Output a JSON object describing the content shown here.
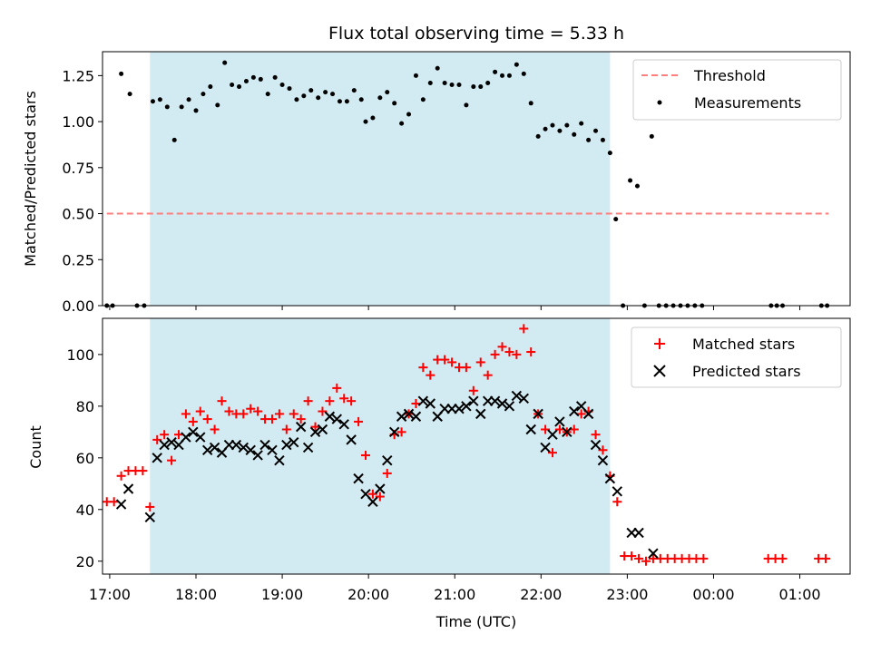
{
  "chart_data": [
    {
      "type": "scatter",
      "title": "Flux total observing time = 5.33 h",
      "xlabel": "",
      "ylabel": "Matched/Predicted stars",
      "xlim": [
        "16:55",
        "01:35"
      ],
      "ylim": [
        0,
        1.38
      ],
      "y_ticks": [
        "0.00",
        "0.25",
        "0.50",
        "0.75",
        "1.00",
        "1.25"
      ],
      "shaded_interval": {
        "start": "17:28",
        "end": "22:48",
        "color": "#add8e6"
      },
      "threshold": {
        "name": "Threshold",
        "value": 0.5,
        "x_start": "16:58",
        "x_end": "01:20",
        "color": "#ff7f7f"
      },
      "legend": {
        "position": "top-right",
        "entries": [
          "Threshold",
          "Measurements"
        ]
      },
      "series": [
        {
          "name": "Measurements",
          "color": "#000000",
          "marker": "dot",
          "points": [
            [
              "16:58",
              0
            ],
            [
              "17:02",
              0
            ],
            [
              "17:08",
              1.26
            ],
            [
              "17:14",
              1.15
            ],
            [
              "17:19",
              0
            ],
            [
              "17:24",
              0
            ],
            [
              "17:30",
              1.11
            ],
            [
              "17:35",
              1.12
            ],
            [
              "17:40",
              1.08
            ],
            [
              "17:45",
              0.9
            ],
            [
              "17:50",
              1.08
            ],
            [
              "17:55",
              1.12
            ],
            [
              "18:00",
              1.06
            ],
            [
              "18:05",
              1.15
            ],
            [
              "18:10",
              1.19
            ],
            [
              "18:15",
              1.09
            ],
            [
              "18:20",
              1.32
            ],
            [
              "18:25",
              1.2
            ],
            [
              "18:30",
              1.19
            ],
            [
              "18:35",
              1.22
            ],
            [
              "18:40",
              1.24
            ],
            [
              "18:45",
              1.23
            ],
            [
              "18:50",
              1.15
            ],
            [
              "18:55",
              1.24
            ],
            [
              "19:00",
              1.2
            ],
            [
              "19:05",
              1.18
            ],
            [
              "19:10",
              1.12
            ],
            [
              "19:15",
              1.14
            ],
            [
              "19:20",
              1.17
            ],
            [
              "19:25",
              1.13
            ],
            [
              "19:30",
              1.16
            ],
            [
              "19:35",
              1.15
            ],
            [
              "19:40",
              1.11
            ],
            [
              "19:45",
              1.11
            ],
            [
              "19:50",
              1.17
            ],
            [
              "19:55",
              1.12
            ],
            [
              "19:58",
              1.0
            ],
            [
              "20:03",
              1.02
            ],
            [
              "20:08",
              1.13
            ],
            [
              "20:13",
              1.16
            ],
            [
              "20:18",
              1.1
            ],
            [
              "20:23",
              0.99
            ],
            [
              "20:28",
              1.04
            ],
            [
              "20:33",
              1.25
            ],
            [
              "20:38",
              1.12
            ],
            [
              "20:43",
              1.21
            ],
            [
              "20:48",
              1.29
            ],
            [
              "20:53",
              1.21
            ],
            [
              "20:58",
              1.2
            ],
            [
              "21:03",
              1.2
            ],
            [
              "21:08",
              1.09
            ],
            [
              "21:13",
              1.19
            ],
            [
              "21:18",
              1.19
            ],
            [
              "21:23",
              1.21
            ],
            [
              "21:28",
              1.27
            ],
            [
              "21:33",
              1.25
            ],
            [
              "21:38",
              1.25
            ],
            [
              "21:43",
              1.31
            ],
            [
              "21:48",
              1.26
            ],
            [
              "21:53",
              1.1
            ],
            [
              "21:58",
              0.92
            ],
            [
              "22:03",
              0.96
            ],
            [
              "22:08",
              0.98
            ],
            [
              "22:13",
              0.95
            ],
            [
              "22:18",
              0.98
            ],
            [
              "22:23",
              0.93
            ],
            [
              "22:28",
              0.99
            ],
            [
              "22:33",
              0.9
            ],
            [
              "22:38",
              0.95
            ],
            [
              "22:43",
              0.9
            ],
            [
              "22:48",
              0.83
            ],
            [
              "22:52",
              0.47
            ],
            [
              "22:57",
              0
            ],
            [
              "23:02",
              0.68
            ],
            [
              "23:07",
              0.65
            ],
            [
              "23:12",
              0
            ],
            [
              "23:17",
              0.92
            ],
            [
              "23:22",
              0
            ],
            [
              "23:27",
              0
            ],
            [
              "23:32",
              0
            ],
            [
              "23:37",
              0
            ],
            [
              "23:42",
              0
            ],
            [
              "23:47",
              0
            ],
            [
              "23:52",
              0
            ],
            [
              "00:40",
              0
            ],
            [
              "00:44",
              0
            ],
            [
              "00:48",
              0
            ],
            [
              "01:15",
              0
            ],
            [
              "01:19",
              0
            ]
          ]
        }
      ]
    },
    {
      "type": "scatter",
      "title": "",
      "xlabel": "Time (UTC)",
      "ylabel": "Count",
      "xlim": [
        "16:55",
        "01:35"
      ],
      "ylim": [
        15,
        114
      ],
      "y_ticks": [
        "20",
        "40",
        "60",
        "80",
        "100"
      ],
      "x_ticks": [
        "17:00",
        "18:00",
        "19:00",
        "20:00",
        "21:00",
        "22:00",
        "23:00",
        "00:00",
        "01:00"
      ],
      "shaded_interval": {
        "start": "17:28",
        "end": "22:48",
        "color": "#add8e6"
      },
      "legend": {
        "position": "top-right",
        "entries": [
          "Matched stars",
          "Predicted stars"
        ]
      },
      "series": [
        {
          "name": "Matched stars",
          "color": "#ff0000",
          "marker": "plus",
          "points": [
            [
              "16:58",
              43
            ],
            [
              "17:03",
              43
            ],
            [
              "17:08",
              53
            ],
            [
              "17:13",
              55
            ],
            [
              "17:18",
              55
            ],
            [
              "17:23",
              55
            ],
            [
              "17:28",
              41
            ],
            [
              "17:33",
              67
            ],
            [
              "17:38",
              69
            ],
            [
              "17:43",
              59
            ],
            [
              "17:48",
              69
            ],
            [
              "17:53",
              77
            ],
            [
              "17:58",
              74
            ],
            [
              "18:03",
              78
            ],
            [
              "18:08",
              75
            ],
            [
              "18:13",
              71
            ],
            [
              "18:18",
              82
            ],
            [
              "18:23",
              78
            ],
            [
              "18:28",
              77
            ],
            [
              "18:33",
              77
            ],
            [
              "18:38",
              79
            ],
            [
              "18:43",
              78
            ],
            [
              "18:48",
              75
            ],
            [
              "18:53",
              75
            ],
            [
              "18:58",
              77
            ],
            [
              "19:03",
              71
            ],
            [
              "19:08",
              77
            ],
            [
              "19:13",
              75
            ],
            [
              "19:18",
              82
            ],
            [
              "19:23",
              72
            ],
            [
              "19:28",
              78
            ],
            [
              "19:33",
              82
            ],
            [
              "19:38",
              87
            ],
            [
              "19:43",
              83
            ],
            [
              "19:48",
              82
            ],
            [
              "19:53",
              74
            ],
            [
              "19:58",
              61
            ],
            [
              "20:03",
              46
            ],
            [
              "20:08",
              45
            ],
            [
              "20:13",
              54
            ],
            [
              "20:18",
              69
            ],
            [
              "20:23",
              70
            ],
            [
              "20:28",
              77
            ],
            [
              "20:33",
              81
            ],
            [
              "20:38",
              95
            ],
            [
              "20:43",
              92
            ],
            [
              "20:48",
              98
            ],
            [
              "20:53",
              98
            ],
            [
              "20:58",
              97
            ],
            [
              "21:03",
              95
            ],
            [
              "21:08",
              95
            ],
            [
              "21:13",
              86
            ],
            [
              "21:18",
              97
            ],
            [
              "21:23",
              92
            ],
            [
              "21:28",
              100
            ],
            [
              "21:33",
              103
            ],
            [
              "21:38",
              101
            ],
            [
              "21:43",
              100
            ],
            [
              "21:48",
              110
            ],
            [
              "21:53",
              101
            ],
            [
              "21:58",
              77
            ],
            [
              "22:03",
              71
            ],
            [
              "22:08",
              62
            ],
            [
              "22:13",
              71
            ],
            [
              "22:18",
              70
            ],
            [
              "22:23",
              71
            ],
            [
              "22:28",
              77
            ],
            [
              "22:33",
              78
            ],
            [
              "22:38",
              69
            ],
            [
              "22:43",
              63
            ],
            [
              "22:48",
              53
            ],
            [
              "22:53",
              43
            ],
            [
              "22:58",
              22
            ],
            [
              "23:03",
              22
            ],
            [
              "23:08",
              21
            ],
            [
              "23:13",
              20
            ],
            [
              "23:18",
              21
            ],
            [
              "23:23",
              21
            ],
            [
              "23:28",
              21
            ],
            [
              "23:33",
              21
            ],
            [
              "23:38",
              21
            ],
            [
              "23:43",
              21
            ],
            [
              "23:48",
              21
            ],
            [
              "23:53",
              21
            ],
            [
              "00:38",
              21
            ],
            [
              "00:43",
              21
            ],
            [
              "00:48",
              21
            ],
            [
              "01:13",
              21
            ],
            [
              "01:18",
              21
            ]
          ]
        },
        {
          "name": "Predicted stars",
          "color": "#000000",
          "marker": "x",
          "points": [
            [
              "17:08",
              42
            ],
            [
              "17:13",
              48
            ],
            [
              "17:28",
              37
            ],
            [
              "17:33",
              60
            ],
            [
              "17:38",
              65
            ],
            [
              "17:43",
              66
            ],
            [
              "17:48",
              65
            ],
            [
              "17:53",
              68
            ],
            [
              "17:58",
              70
            ],
            [
              "18:03",
              68
            ],
            [
              "18:08",
              63
            ],
            [
              "18:13",
              64
            ],
            [
              "18:18",
              62
            ],
            [
              "18:23",
              65
            ],
            [
              "18:28",
              65
            ],
            [
              "18:33",
              64
            ],
            [
              "18:38",
              63
            ],
            [
              "18:43",
              61
            ],
            [
              "18:48",
              65
            ],
            [
              "18:53",
              63
            ],
            [
              "18:58",
              59
            ],
            [
              "19:03",
              65
            ],
            [
              "19:08",
              66
            ],
            [
              "19:13",
              72
            ],
            [
              "19:18",
              64
            ],
            [
              "19:23",
              70
            ],
            [
              "19:28",
              71
            ],
            [
              "19:33",
              76
            ],
            [
              "19:38",
              75
            ],
            [
              "19:43",
              73
            ],
            [
              "19:48",
              67
            ],
            [
              "19:53",
              52
            ],
            [
              "19:58",
              46
            ],
            [
              "20:03",
              43
            ],
            [
              "20:08",
              48
            ],
            [
              "20:13",
              59
            ],
            [
              "20:18",
              70
            ],
            [
              "20:23",
              76
            ],
            [
              "20:28",
              77
            ],
            [
              "20:33",
              76
            ],
            [
              "20:38",
              82
            ],
            [
              "20:43",
              81
            ],
            [
              "20:48",
              76
            ],
            [
              "20:53",
              79
            ],
            [
              "20:58",
              79
            ],
            [
              "21:03",
              79
            ],
            [
              "21:08",
              80
            ],
            [
              "21:13",
              82
            ],
            [
              "21:18",
              77
            ],
            [
              "21:23",
              82
            ],
            [
              "21:28",
              82
            ],
            [
              "21:33",
              81
            ],
            [
              "21:38",
              80
            ],
            [
              "21:43",
              84
            ],
            [
              "21:48",
              83
            ],
            [
              "21:53",
              71
            ],
            [
              "21:58",
              77
            ],
            [
              "22:03",
              64
            ],
            [
              "22:08",
              69
            ],
            [
              "22:13",
              74
            ],
            [
              "22:18",
              70
            ],
            [
              "22:23",
              78
            ],
            [
              "22:28",
              80
            ],
            [
              "22:33",
              77
            ],
            [
              "22:38",
              65
            ],
            [
              "22:43",
              59
            ],
            [
              "22:48",
              52
            ],
            [
              "22:53",
              47
            ],
            [
              "23:03",
              31
            ],
            [
              "23:08",
              31
            ],
            [
              "23:18",
              23
            ]
          ]
        }
      ]
    }
  ]
}
